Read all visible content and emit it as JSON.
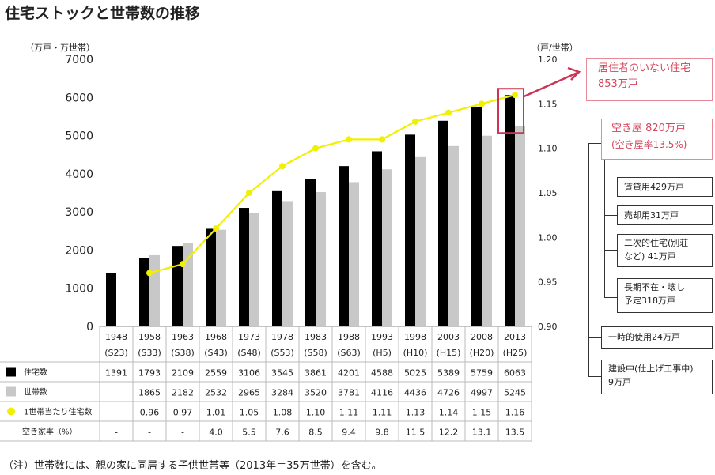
{
  "title": "住宅ストックと世帯数の推移",
  "note": "（注）世帯数には、親の家に同居する子供世帯等（2013年＝35万世帯）を含む。",
  "colors": {
    "stock": "#000000",
    "household": "#c8c8c8",
    "ratio": "#f0f000",
    "highlight": "#cc3355",
    "highlight_text": "#d4455b"
  },
  "chart_data": {
    "type": "bar",
    "title": "住宅ストックと世帯数の推移",
    "ylabel": "（万戸・万世帯）",
    "y2label": "（戸/世帯）",
    "ylim": [
      0,
      7000
    ],
    "y2lim": [
      0.9,
      1.2
    ],
    "yticks": [
      "7000",
      "6000",
      "5000",
      "4000",
      "3000",
      "2000",
      "1000",
      "0"
    ],
    "y2ticks": [
      "1.20",
      "1.15",
      "1.10",
      "1.05",
      "1.00",
      "0.95",
      "0.90"
    ],
    "grid": false,
    "categories": [
      "1948",
      "1958",
      "1963",
      "1968",
      "1973",
      "1978",
      "1983",
      "1988",
      "1993",
      "1998",
      "2003",
      "2008",
      "2013"
    ],
    "era": [
      "(S23)",
      "(S33)",
      "(S38)",
      "(S43)",
      "(S48)",
      "(S53)",
      "(S58)",
      "(S63)",
      "(H5)",
      "(H10)",
      "(H15)",
      "(H20)",
      "(H25)"
    ],
    "series": [
      {
        "name": "住宅数",
        "values": [
          1391,
          1793,
          2109,
          2559,
          3106,
          3545,
          3861,
          4201,
          4588,
          5025,
          5389,
          5759,
          6063
        ],
        "labels": [
          "1391",
          "1793",
          "2109",
          "2559",
          "3106",
          "3545",
          "3861",
          "4201",
          "4588",
          "5025",
          "5389",
          "5759",
          "6063"
        ]
      },
      {
        "name": "世帯数",
        "values": [
          null,
          1865,
          2182,
          2532,
          2965,
          3284,
          3520,
          3781,
          4116,
          4436,
          4726,
          4997,
          5245
        ],
        "labels": [
          "",
          "1865",
          "2182",
          "2532",
          "2965",
          "3284",
          "3520",
          "3781",
          "4116",
          "4436",
          "4726",
          "4997",
          "5245"
        ]
      },
      {
        "name": "1世帯当たり住宅数",
        "type": "line",
        "axis": "right",
        "values": [
          null,
          0.96,
          0.97,
          1.01,
          1.05,
          1.08,
          1.1,
          1.11,
          1.11,
          1.13,
          1.14,
          1.15,
          1.16
        ],
        "labels": [
          "",
          "0.96",
          "0.97",
          "1.01",
          "1.05",
          "1.08",
          "1.10",
          "1.11",
          "1.11",
          "1.13",
          "1.14",
          "1.15",
          "1.16"
        ]
      },
      {
        "name": "空き家率（%）",
        "type": "table",
        "values": [
          null,
          null,
          null,
          4.0,
          5.5,
          7.6,
          8.5,
          9.4,
          9.8,
          11.5,
          12.2,
          13.1,
          13.5
        ],
        "labels": [
          "-",
          "-",
          "-",
          "4.0",
          "5.5",
          "7.6",
          "8.5",
          "9.4",
          "9.8",
          "11.5",
          "12.2",
          "13.1",
          "13.5"
        ]
      }
    ]
  },
  "callouts": {
    "top": "居住者のいない住宅",
    "top_value": "853万戸",
    "vacant": "空き屋 820万戸",
    "vacant_rate": "(空き屋率13.5%)",
    "rent": "賃貸用429万戸",
    "sale": "売却用31万戸",
    "second_l1": "二次的住宅(別荘",
    "second_l2": "など) 41万戸",
    "absent_l1": "長期不在・壊し",
    "absent_l2": "予定318万戸",
    "temp": "一時的使用24万戸",
    "construction_l1": "建設中(仕上げ工事中)",
    "construction_l2": "9万戸"
  }
}
